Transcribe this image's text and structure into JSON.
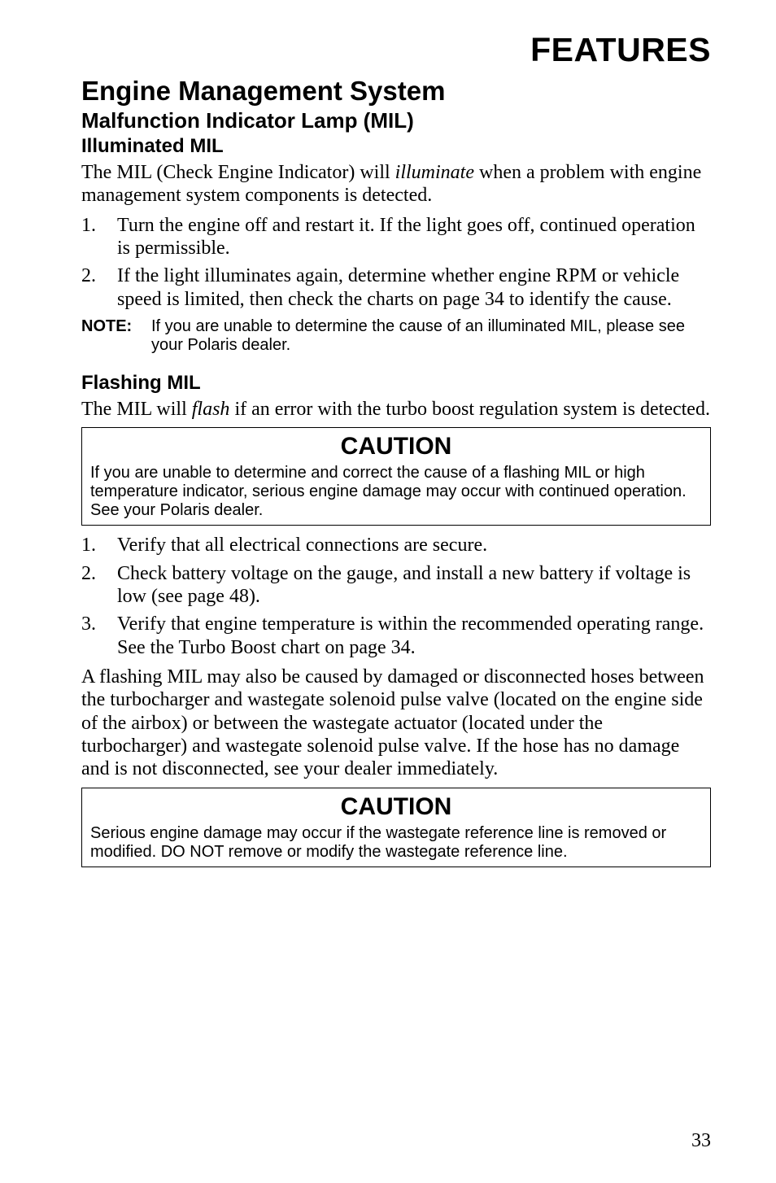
{
  "header": {
    "title": "FEATURES"
  },
  "section": {
    "h1": "Engine Management System",
    "h2": "Malfunction Indicator Lamp (MIL)",
    "illuminated": {
      "h3": "Illuminated MIL",
      "intro_a": "The MIL (Check Engine Indicator) will ",
      "intro_em": "illuminate",
      "intro_b": " when a problem with engine management system components is detected.",
      "items": [
        "Turn the engine off and restart it. If the light goes off, continued operation is permissible.",
        "If the light illuminates again, determine whether engine RPM or vehicle speed is limited, then check the charts on page 34 to identify the cause."
      ],
      "note_label": "NOTE:",
      "note_text": "If you are unable to determine the cause of an illuminated MIL, please see your Polaris dealer."
    },
    "flashing": {
      "h3": "Flashing MIL",
      "intro_a": "The MIL will ",
      "intro_em": "flash",
      "intro_b": " if an error with the turbo boost regulation system is detected.",
      "caution1_title": "CAUTION",
      "caution1_body": "If you are unable to determine and correct the cause of a flashing MIL or high temperature indicator, serious engine damage may occur with continued operation. See your Polaris dealer.",
      "items": [
        "Verify that all electrical connections are secure.",
        "Check battery voltage on the gauge, and install a new battery if voltage is low (see page 48).",
        "Verify that engine temperature is within the recommended operating range. See the Turbo Boost chart on page 34."
      ],
      "para": "A flashing MIL may also be caused by damaged or disconnected hoses between the turbocharger and wastegate solenoid pulse valve (located on the engine side of the airbox) or between the wastegate actuator (located under the turbocharger) and wastegate solenoid pulse valve. If the hose has no damage and is not disconnected, see your dealer immediately.",
      "caution2_title": "CAUTION",
      "caution2_body": "Serious engine damage may occur if the wastegate reference line is removed or modified. DO NOT remove or modify the wastegate reference line."
    }
  },
  "page_number": "33"
}
